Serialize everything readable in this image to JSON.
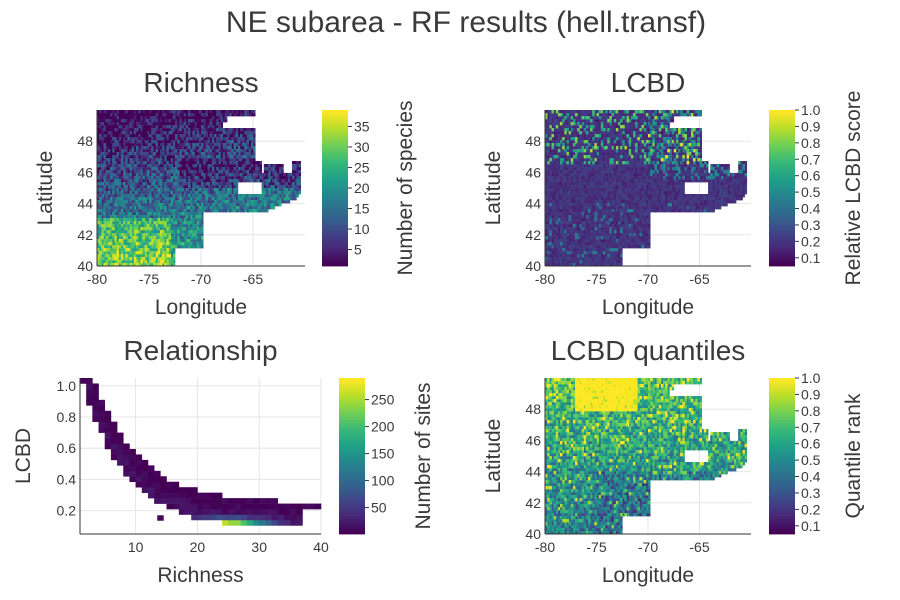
{
  "figure_title": "NE subarea - RF results (hell.transf)",
  "colors": {
    "viridis": [
      "#440154",
      "#482878",
      "#3e4989",
      "#31688e",
      "#26828e",
      "#1f9e89",
      "#35b779",
      "#6ece58",
      "#b5de2b",
      "#fde725"
    ],
    "grid": "#e6e6e6",
    "axis": "#333333"
  },
  "chart_data": [
    {
      "type": "heatmap",
      "title": "Richness",
      "xlabel": "Longitude",
      "ylabel": "Latitude",
      "xlim": [
        -80,
        -60
      ],
      "ylim": [
        40,
        50
      ],
      "xticks": [
        "-80",
        "-75",
        "-70",
        "-65"
      ],
      "yticks": [
        "40",
        "42",
        "44",
        "46",
        "48"
      ],
      "colorbar": {
        "label": "Number of species",
        "range": [
          1,
          39
        ],
        "ticks": [
          "5",
          "10",
          "15",
          "20",
          "25",
          "30",
          "35"
        ]
      },
      "pattern": "richness"
    },
    {
      "type": "heatmap",
      "title": "LCBD",
      "xlabel": "Longitude",
      "ylabel": "Latitude",
      "xlim": [
        -80,
        -60
      ],
      "ylim": [
        40,
        50
      ],
      "xticks": [
        "-80",
        "-75",
        "-70",
        "-65"
      ],
      "yticks": [
        "40",
        "42",
        "44",
        "46",
        "48"
      ],
      "colorbar": {
        "label": "Relative LCBD score",
        "range": [
          0.05,
          1.0
        ],
        "ticks": [
          "0.1",
          "0.2",
          "0.3",
          "0.4",
          "0.5",
          "0.6",
          "0.7",
          "0.8",
          "0.9",
          "1.0"
        ]
      },
      "pattern": "lcbd"
    },
    {
      "type": "heatmap",
      "title": "Relationship",
      "xlabel": "Richness",
      "ylabel": "LCBD",
      "xlim": [
        1,
        40
      ],
      "ylim": [
        0.05,
        1.05
      ],
      "xticks": [
        "10",
        "20",
        "30",
        "40"
      ],
      "yticks": [
        "0.2",
        "0.4",
        "0.6",
        "0.8",
        "1.0"
      ],
      "colorbar": {
        "label": "Number of sites",
        "range": [
          1,
          290
        ],
        "ticks": [
          "50",
          "100",
          "150",
          "200",
          "250"
        ]
      },
      "pattern": "relationship"
    },
    {
      "type": "heatmap",
      "title": "LCBD quantiles",
      "xlabel": "Longitude",
      "ylabel": "Latitude",
      "xlim": [
        -80,
        -60
      ],
      "ylim": [
        40,
        50
      ],
      "xticks": [
        "-80",
        "-75",
        "-70",
        "-65"
      ],
      "yticks": [
        "40",
        "42",
        "44",
        "46",
        "48"
      ],
      "colorbar": {
        "label": "Quantile rank",
        "range": [
          0.05,
          1.0
        ],
        "ticks": [
          "0.1",
          "0.2",
          "0.3",
          "0.4",
          "0.5",
          "0.6",
          "0.7",
          "0.8",
          "0.9",
          "1.0"
        ]
      },
      "pattern": "quantiles"
    }
  ]
}
